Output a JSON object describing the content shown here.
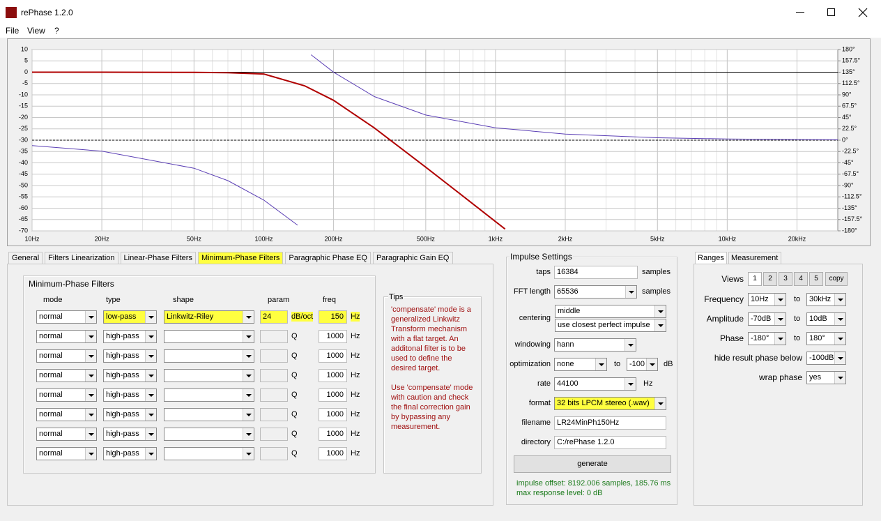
{
  "window": {
    "title": "rePhase 1.2.0"
  },
  "menu": [
    "File",
    "View",
    "?"
  ],
  "plot": {
    "xscale": "log",
    "xlim": [
      10,
      30000
    ],
    "ylim": [
      -70,
      10
    ],
    "y2lim": [
      -180,
      180
    ],
    "grid": true,
    "xticks": [
      {
        "value": 10,
        "label": "10Hz"
      },
      {
        "value": 20,
        "label": "20Hz"
      },
      {
        "value": 50,
        "label": "50Hz"
      },
      {
        "value": 100,
        "label": "100Hz"
      },
      {
        "value": 200,
        "label": "200Hz"
      },
      {
        "value": 500,
        "label": "500Hz"
      },
      {
        "value": 1000,
        "label": "1kHz"
      },
      {
        "value": 2000,
        "label": "2kHz"
      },
      {
        "value": 5000,
        "label": "5kHz"
      },
      {
        "value": 10000,
        "label": "10kHz"
      },
      {
        "value": 20000,
        "label": "20kHz"
      }
    ],
    "yticks": [
      10,
      5,
      0,
      -5,
      -10,
      -15,
      -20,
      -25,
      -30,
      -35,
      -40,
      -45,
      -50,
      -55,
      -60,
      -65,
      -70
    ],
    "y2ticks": [
      {
        "value": 180,
        "label": "180°"
      },
      {
        "value": 157.5,
        "label": "157.5°"
      },
      {
        "value": 135,
        "label": "135°"
      },
      {
        "value": 112.5,
        "label": "112.5°"
      },
      {
        "value": 90,
        "label": "90°"
      },
      {
        "value": 67.5,
        "label": "67.5°"
      },
      {
        "value": 45,
        "label": "45°"
      },
      {
        "value": 22.5,
        "label": "22.5°"
      },
      {
        "value": 0,
        "label": "0°"
      },
      {
        "value": -22.5,
        "label": "-22.5°"
      },
      {
        "value": -45,
        "label": "-45°"
      },
      {
        "value": -67.5,
        "label": "-67.5°"
      },
      {
        "value": -90,
        "label": "-90°"
      },
      {
        "value": -112.5,
        "label": "-112.5°"
      },
      {
        "value": -135,
        "label": "-135°"
      },
      {
        "value": -157.5,
        "label": "-157.5°"
      },
      {
        "value": -180,
        "label": "-180°"
      }
    ],
    "series": [
      {
        "color": "#b00000",
        "x": [
          10,
          20,
          50,
          70,
          100,
          150,
          200,
          300,
          500,
          700,
          1000,
          1100
        ],
        "values": [
          0,
          0,
          -0.1,
          -0.2,
          -0.8,
          -6,
          -12.4,
          -24.6,
          -41.9,
          -53.5,
          -65.9,
          -69.2
        ]
      },
      {
        "color": "#5b3fb5",
        "axis": "y2",
        "x": [
          10,
          20,
          50,
          70,
          100,
          140,
          150,
          160,
          200,
          300,
          500,
          1000,
          2000,
          5000,
          10000,
          20000,
          30000
        ],
        "values": [
          -10.8,
          -21.7,
          -55.7,
          -80.3,
          -119,
          -168.8,
          null,
          169.6,
          135.2,
          86.6,
          50,
          24.5,
          12.2,
          4.9,
          2.4,
          1.2,
          0.8
        ]
      }
    ]
  },
  "tabs": [
    "General",
    "Filters Linearization",
    "Linear-Phase Filters",
    "Minimum-Phase Filters",
    "Paragraphic Phase EQ",
    "Paragraphic Gain EQ"
  ],
  "filters": {
    "title": "Minimum-Phase Filters",
    "columns": [
      "mode",
      "type",
      "shape",
      "param",
      "freq"
    ],
    "rows": [
      {
        "mode": "normal",
        "type": "low-pass",
        "shape": "Linkwitz-Riley",
        "param": 24,
        "param_unit": "dB/oct",
        "freq": 150,
        "freq_unit": "Hz"
      },
      {
        "mode": "normal",
        "type": "high-pass",
        "param_unit": "Q",
        "freq": 1000,
        "freq_unit": "Hz"
      },
      {
        "mode": "normal",
        "type": "high-pass",
        "param_unit": "Q",
        "freq": 1000,
        "freq_unit": "Hz"
      },
      {
        "mode": "normal",
        "type": "high-pass",
        "param_unit": "Q",
        "freq": 1000,
        "freq_unit": "Hz"
      },
      {
        "mode": "normal",
        "type": "high-pass",
        "param_unit": "Q",
        "freq": 1000,
        "freq_unit": "Hz"
      },
      {
        "mode": "normal",
        "type": "high-pass",
        "param_unit": "Q",
        "freq": 1000,
        "freq_unit": "Hz"
      },
      {
        "mode": "normal",
        "type": "high-pass",
        "param_unit": "Q",
        "freq": 1000,
        "freq_unit": "Hz"
      },
      {
        "mode": "normal",
        "type": "high-pass",
        "param_unit": "Q",
        "freq": 1000,
        "freq_unit": "Hz"
      }
    ]
  },
  "tips": {
    "title": "Tips",
    "paragraphs": [
      "'compensate' mode is a generalized Linkwitz Transform mechanism with a flat target. An additonal filter is to be used to define the desired target.",
      "Use 'compensate' mode with caution and check the final correction gain by bypassing any measurement."
    ]
  },
  "impulse": {
    "title": "Impulse Settings",
    "taps": {
      "label": "taps",
      "value": 16384,
      "unit": "samples"
    },
    "fft": {
      "label": "FFT length",
      "value": 65536,
      "unit": "samples"
    },
    "centering": {
      "label": "centering",
      "values": [
        "middle",
        "use closest perfect impulse"
      ]
    },
    "windowing": {
      "label": "windowing",
      "value": "hann"
    },
    "optimization": {
      "label": "optimization",
      "value": "none",
      "to": "to",
      "limit": -100,
      "unit": "dB"
    },
    "rate": {
      "label": "rate",
      "value": 44100,
      "unit": "Hz"
    },
    "format": {
      "label": "format",
      "value": "32 bits LPCM stereo (.wav)"
    },
    "filename": {
      "label": "filename",
      "value": "LR24MinPh150Hz"
    },
    "directory": {
      "label": "directory",
      "value": "C:/rePhase 1.2.0"
    },
    "button": "generate",
    "status": [
      "impulse offset: 8192.006 samples, 185.76 ms",
      "max response level: 0 dB"
    ]
  },
  "ranges": {
    "tabs": [
      "Ranges",
      "Measurement"
    ],
    "views": {
      "label": "Views",
      "buttons": [
        "1",
        "2",
        "3",
        "4",
        "5",
        "copy"
      ]
    },
    "rows": [
      {
        "label": "Frequency",
        "from": "10Hz",
        "to_label": "to",
        "to": "30kHz"
      },
      {
        "label": "Amplitude",
        "from": "-70dB",
        "to_label": "to",
        "to": "10dB"
      },
      {
        "label": "Phase",
        "from": "-180°",
        "to_label": "to",
        "to": "180°"
      }
    ],
    "hide": {
      "label": "hide result phase below",
      "value": "-100dB"
    },
    "wrap": {
      "label": "wrap phase",
      "value": "yes"
    }
  }
}
